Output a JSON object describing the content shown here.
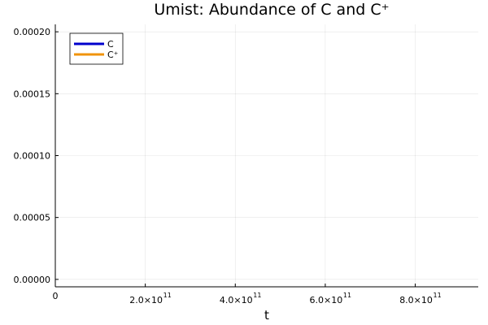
{
  "chart_data": {
    "type": "line",
    "title": "Umist: Abundance of C and C⁺",
    "xlabel": "t",
    "ylabel": "",
    "xlim": [
      0,
      940000000000.0
    ],
    "ylim": [
      -6e-06,
      0.000206
    ],
    "x_ticks": [
      {
        "value": 0,
        "mantissa": "0",
        "exponent": ""
      },
      {
        "value": 200000000000.0,
        "mantissa": "2.0×10",
        "exponent": "11"
      },
      {
        "value": 400000000000.0,
        "mantissa": "4.0×10",
        "exponent": "11"
      },
      {
        "value": 600000000000.0,
        "mantissa": "6.0×10",
        "exponent": "11"
      },
      {
        "value": 800000000000.0,
        "mantissa": "8.0×10",
        "exponent": "11"
      }
    ],
    "y_ticks": [
      {
        "value": 0,
        "label": "0.00000"
      },
      {
        "value": 5e-05,
        "label": "0.00005"
      },
      {
        "value": 0.0001,
        "label": "0.00010"
      },
      {
        "value": 0.00015,
        "label": "0.00015"
      },
      {
        "value": 0.0002,
        "label": "0.00020"
      }
    ],
    "grid": true,
    "legend_position": "top-left",
    "series": [
      {
        "name": "C",
        "color": "#0000cc",
        "x": [],
        "y": []
      },
      {
        "name": "C⁺",
        "color": "#f0930a",
        "x": [],
        "y": []
      }
    ]
  }
}
